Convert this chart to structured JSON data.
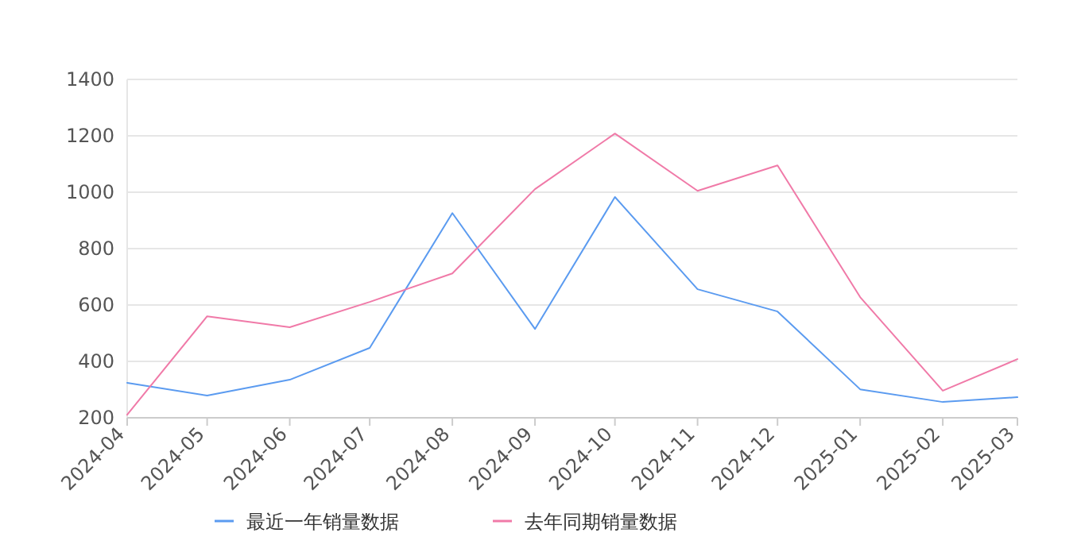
{
  "chart_data": {
    "type": "line",
    "x": [
      "2024-04",
      "2024-05",
      "2024-06",
      "2024-07",
      "2024-08",
      "2024-09",
      "2024-10",
      "2024-11",
      "2024-12",
      "2025-01",
      "2025-02",
      "2025-03"
    ],
    "series": [
      {
        "name": "最近一年销量数据",
        "color": "#5b9bf0",
        "values": [
          324,
          279,
          335,
          448,
          926,
          515,
          983,
          656,
          577,
          301,
          256,
          273
        ]
      },
      {
        "name": "去年同期销量数据",
        "color": "#f07aa8",
        "values": [
          211,
          560,
          521,
          611,
          712,
          1011,
          1208,
          1005,
          1095,
          628,
          296,
          408
        ]
      }
    ],
    "xlim": [
      "2024-04",
      "2025-03"
    ],
    "xticks": [
      "2024-04",
      "2024-05",
      "2024-06",
      "2024-07",
      "2024-08",
      "2024-09",
      "2024-10",
      "2024-11",
      "2024-12",
      "2025-01",
      "2025-02",
      "2025-03"
    ],
    "ylim": [
      200,
      1400
    ],
    "yticks": [
      200,
      400,
      600,
      800,
      1000,
      1200,
      1400
    ],
    "grid": "y",
    "legend": "bottom",
    "marker": "none",
    "line_style": "solid"
  }
}
